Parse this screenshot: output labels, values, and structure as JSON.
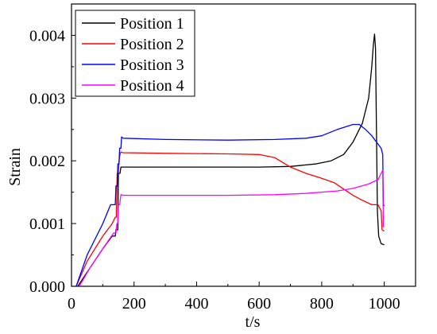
{
  "chart_data": {
    "type": "line",
    "xlabel": "t/s",
    "ylabel": "Strain",
    "xlim": [
      0,
      1100
    ],
    "ylim": [
      0,
      0.0045
    ],
    "x_ticks": [
      0,
      200,
      400,
      600,
      800,
      1000
    ],
    "x_tick_labels": [
      "0",
      "200",
      "400",
      "600",
      "800",
      "1000"
    ],
    "y_ticks": [
      0,
      0.001,
      0.002,
      0.003,
      0.004
    ],
    "y_tick_labels": [
      "0.000",
      "0.001",
      "0.002",
      "0.003",
      "0.004"
    ],
    "grid": false,
    "legend_position": "top-left",
    "series": [
      {
        "name": "Position 1",
        "color": "#000000",
        "points": [
          [
            20,
            0
          ],
          [
            60,
            0.0003
          ],
          [
            100,
            0.0006
          ],
          [
            130,
            0.0008
          ],
          [
            140,
            0.0008
          ],
          [
            142,
            0.0009
          ],
          [
            148,
            0.0009
          ],
          [
            150,
            0.0018
          ],
          [
            155,
            0.0018
          ],
          [
            158,
            0.0019
          ],
          [
            165,
            0.0019
          ],
          [
            200,
            0.0019
          ],
          [
            400,
            0.0019
          ],
          [
            600,
            0.0019
          ],
          [
            700,
            0.00191
          ],
          [
            780,
            0.00195
          ],
          [
            830,
            0.002
          ],
          [
            870,
            0.0021
          ],
          [
            900,
            0.0023
          ],
          [
            930,
            0.0026
          ],
          [
            950,
            0.003
          ],
          [
            960,
            0.0035
          ],
          [
            965,
            0.00385
          ],
          [
            969,
            0.00402
          ],
          [
            972,
            0.0038
          ],
          [
            975,
            0.0025
          ],
          [
            978,
            0.0012
          ],
          [
            982,
            0.0008
          ],
          [
            990,
            0.00068
          ],
          [
            1000,
            0.00066
          ]
        ]
      },
      {
        "name": "Position 2",
        "color": "#ff0000",
        "points": [
          [
            15,
            0
          ],
          [
            50,
            0.0004
          ],
          [
            100,
            0.0008
          ],
          [
            130,
            0.001
          ],
          [
            140,
            0.0011
          ],
          [
            143,
            0.0011
          ],
          [
            146,
            0.0018
          ],
          [
            150,
            0.0018
          ],
          [
            152,
            0.002
          ],
          [
            155,
            0.0021
          ],
          [
            158,
            0.00214
          ],
          [
            165,
            0.00213
          ],
          [
            300,
            0.00212
          ],
          [
            500,
            0.00211
          ],
          [
            600,
            0.0021
          ],
          [
            650,
            0.00205
          ],
          [
            700,
            0.0019
          ],
          [
            750,
            0.0018
          ],
          [
            800,
            0.00172
          ],
          [
            840,
            0.00165
          ],
          [
            870,
            0.00155
          ],
          [
            900,
            0.00145
          ],
          [
            930,
            0.00137
          ],
          [
            960,
            0.0013
          ],
          [
            980,
            0.0013
          ],
          [
            990,
            0.0012
          ],
          [
            993,
            0.0009
          ],
          [
            1000,
            0.00088
          ]
        ]
      },
      {
        "name": "Position 3",
        "color": "#0000ff",
        "points": [
          [
            15,
            0
          ],
          [
            50,
            0.0005
          ],
          [
            100,
            0.001
          ],
          [
            125,
            0.0013
          ],
          [
            140,
            0.0013
          ],
          [
            142,
            0.0016
          ],
          [
            146,
            0.0016
          ],
          [
            148,
            0.00195
          ],
          [
            152,
            0.00195
          ],
          [
            154,
            0.0022
          ],
          [
            158,
            0.0022
          ],
          [
            160,
            0.00238
          ],
          [
            165,
            0.00236
          ],
          [
            300,
            0.00234
          ],
          [
            500,
            0.00233
          ],
          [
            650,
            0.00234
          ],
          [
            750,
            0.00236
          ],
          [
            800,
            0.0024
          ],
          [
            850,
            0.0025
          ],
          [
            900,
            0.00258
          ],
          [
            920,
            0.00258
          ],
          [
            940,
            0.0025
          ],
          [
            960,
            0.0024
          ],
          [
            975,
            0.0023
          ],
          [
            990,
            0.0022
          ],
          [
            995,
            0.0021
          ],
          [
            997,
            0.0013
          ],
          [
            1000,
            0.00128
          ]
        ]
      },
      {
        "name": "Position 4",
        "color": "#ff00ff",
        "points": [
          [
            25,
            0
          ],
          [
            60,
            0.0003
          ],
          [
            100,
            0.0006
          ],
          [
            135,
            0.00085
          ],
          [
            142,
            0.00085
          ],
          [
            145,
            0.001
          ],
          [
            148,
            0.001
          ],
          [
            150,
            0.0013
          ],
          [
            154,
            0.0013
          ],
          [
            158,
            0.00146
          ],
          [
            165,
            0.00145
          ],
          [
            300,
            0.00145
          ],
          [
            500,
            0.00145
          ],
          [
            650,
            0.00146
          ],
          [
            750,
            0.00148
          ],
          [
            850,
            0.00152
          ],
          [
            900,
            0.00156
          ],
          [
            950,
            0.00163
          ],
          [
            980,
            0.0017
          ],
          [
            990,
            0.0018
          ],
          [
            995,
            0.00185
          ],
          [
            997,
            0.00095
          ],
          [
            1000,
            0.00095
          ]
        ]
      }
    ]
  }
}
